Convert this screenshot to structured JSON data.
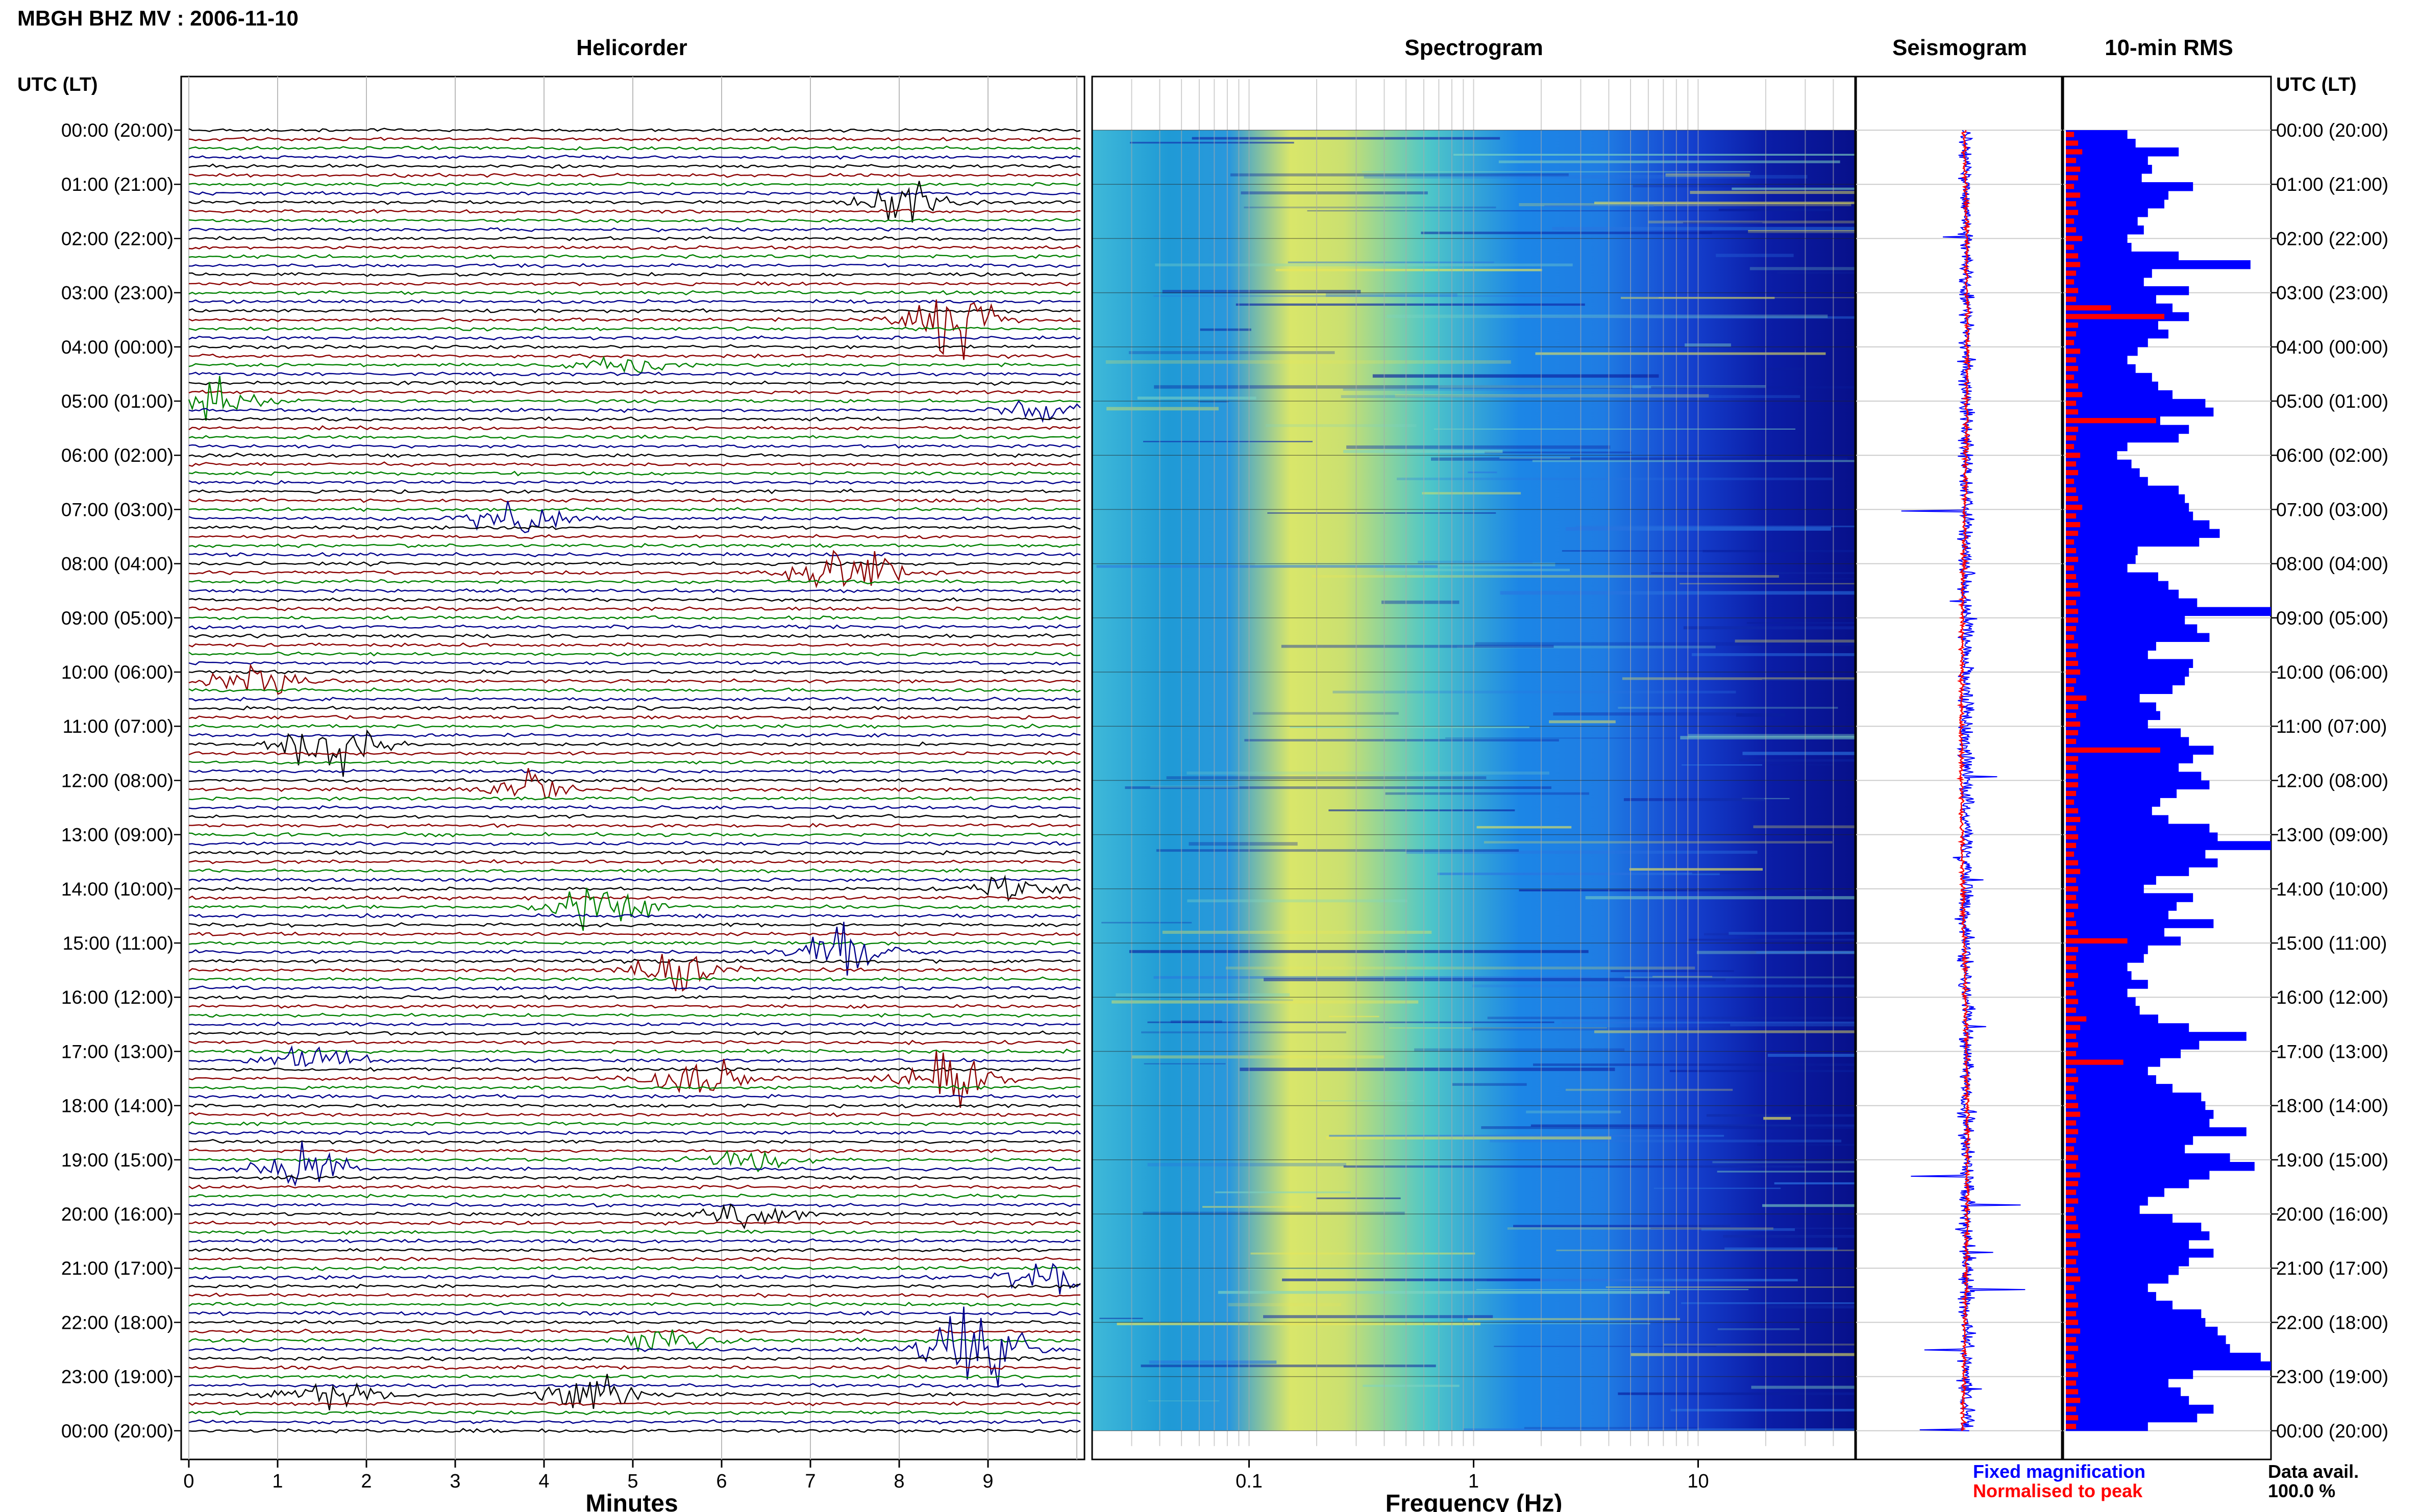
{
  "header": {
    "title": "MBGH BHZ MV : 2006-11-10",
    "helicorder_title": "Helicorder",
    "spectrogram_title": "Spectrogram",
    "seismogram_title": "Seismogram",
    "rms_title": "10-min RMS",
    "left_axis_title": "UTC (LT)",
    "right_axis_title": "UTC (LT)"
  },
  "footer": {
    "minutes_label": "Minutes",
    "frequency_label": "Frequency (Hz)",
    "legend_fixed": "Fixed magnification",
    "legend_normalised": "Normalised to peak",
    "data_avail_label": "Data avail.",
    "data_avail_value": "100.0 %"
  },
  "colors": {
    "trace_cycle": [
      "#000000",
      "#8b0000",
      "#008000",
      "#00008b"
    ],
    "fixed": "#0000ff",
    "normalised": "#ff0000"
  },
  "chart_data": [
    {
      "type": "line",
      "name": "helicorder",
      "title": "Helicorder",
      "xlabel": "Minutes",
      "xlim": [
        0,
        10
      ],
      "x_ticks": [
        "0",
        "1",
        "2",
        "3",
        "4",
        "5",
        "6",
        "7",
        "8",
        "9"
      ],
      "hour_labels": [
        "00:00 (20:00)",
        "01:00 (21:00)",
        "02:00 (22:00)",
        "03:00 (23:00)",
        "04:00 (00:00)",
        "05:00 (01:00)",
        "06:00 (02:00)",
        "07:00 (03:00)",
        "08:00 (04:00)",
        "09:00 (05:00)",
        "10:00 (06:00)",
        "11:00 (07:00)",
        "12:00 (08:00)",
        "13:00 (09:00)",
        "14:00 (10:00)",
        "15:00 (11:00)",
        "16:00 (12:00)",
        "17:00 (13:00)",
        "18:00 (14:00)",
        "19:00 (15:00)",
        "20:00 (16:00)",
        "21:00 (17:00)",
        "22:00 (18:00)",
        "23:00 (19:00)",
        "00:00 (20:00)"
      ],
      "traces_per_hour": 6,
      "events": [
        [
          1,
          8.0,
          1.6
        ],
        [
          3,
          8.6,
          2.6
        ],
        [
          4,
          4.9,
          0.6
        ],
        [
          5,
          0.2,
          1.6
        ],
        [
          5,
          9.6,
          0.8
        ],
        [
          7,
          3.7,
          1.4
        ],
        [
          8,
          7.4,
          2.8
        ],
        [
          10,
          0.7,
          1.2
        ],
        [
          11,
          1.6,
          2.2
        ],
        [
          12,
          3.8,
          1.0
        ],
        [
          14,
          4.7,
          2.2
        ],
        [
          14,
          9.3,
          1.0
        ],
        [
          15,
          5.5,
          1.4
        ],
        [
          15,
          7.3,
          1.6
        ],
        [
          17,
          1.4,
          1.2
        ],
        [
          17,
          5.7,
          1.6
        ],
        [
          17,
          8.5,
          2.2
        ],
        [
          19,
          1.3,
          1.6
        ],
        [
          19,
          6.3,
          1.0
        ],
        [
          20,
          6.3,
          1.4
        ],
        [
          21,
          9.6,
          1.4
        ],
        [
          22,
          5.4,
          1.2
        ],
        [
          22,
          8.8,
          3.2
        ],
        [
          23,
          4.5,
          1.6
        ],
        [
          23,
          1.6,
          1.0
        ]
      ]
    },
    {
      "type": "heatmap",
      "name": "spectrogram",
      "title": "Spectrogram",
      "xlabel": "Frequency (Hz)",
      "x_scale": "log",
      "xlim": [
        0.02,
        50
      ],
      "x_ticks": [
        0.1,
        1,
        10
      ],
      "x_tick_labels": [
        "0.1",
        "1",
        "10"
      ]
    },
    {
      "type": "line",
      "name": "seismogram",
      "title": "Seismogram",
      "series": [
        {
          "name": "Fixed magnification",
          "color": "#0000ff"
        },
        {
          "name": "Normalised to peak",
          "color": "#ff0000"
        }
      ]
    },
    {
      "type": "bar",
      "name": "10-min RMS",
      "title": "10-min RMS",
      "series": [
        {
          "name": "Fixed magnification",
          "color": "#0000ff",
          "values": [
            0.3,
            0.34,
            0.55,
            0.4,
            0.42,
            0.37,
            0.62,
            0.5,
            0.48,
            0.4,
            0.35,
            0.38,
            0.3,
            0.32,
            0.55,
            0.9,
            0.42,
            0.38,
            0.6,
            0.44,
            0.52,
            0.6,
            0.45,
            0.5,
            0.4,
            0.35,
            0.3,
            0.34,
            0.42,
            0.45,
            0.52,
            0.68,
            0.72,
            0.46,
            0.6,
            0.55,
            0.3,
            0.25,
            0.32,
            0.36,
            0.4,
            0.55,
            0.58,
            0.6,
            0.62,
            0.7,
            0.75,
            0.65,
            0.35,
            0.34,
            0.3,
            0.45,
            0.5,
            0.55,
            0.64,
            1.0,
            0.58,
            0.64,
            0.7,
            0.44,
            0.4,
            0.62,
            0.6,
            0.58,
            0.52,
            0.36,
            0.44,
            0.46,
            0.4,
            0.56,
            0.6,
            0.72,
            0.62,
            0.55,
            0.66,
            0.7,
            0.54,
            0.46,
            0.42,
            0.5,
            0.7,
            0.74,
            1.0,
            0.68,
            0.74,
            0.6,
            0.44,
            0.38,
            0.62,
            0.54,
            0.5,
            0.72,
            0.48,
            0.56,
            0.4,
            0.38,
            0.3,
            0.32,
            0.4,
            0.3,
            0.34,
            0.36,
            0.45,
            0.6,
            0.88,
            0.65,
            0.56,
            0.46,
            0.4,
            0.44,
            0.52,
            0.66,
            0.68,
            0.72,
            0.7,
            0.88,
            0.62,
            0.58,
            0.8,
            0.92,
            0.7,
            0.6,
            0.48,
            0.4,
            0.36,
            0.52,
            0.66,
            0.7,
            0.6,
            0.72,
            0.6,
            0.55,
            0.5,
            0.4,
            0.44,
            0.52,
            0.66,
            0.68,
            0.74,
            0.78,
            0.8,
            0.95,
            1.0,
            0.62,
            0.5,
            0.56,
            0.6,
            0.72,
            0.64,
            0.4
          ]
        },
        {
          "name": "Normalised to peak",
          "color": "#ff0000",
          "values": [
            0.04,
            0.06,
            0.08,
            0.05,
            0.07,
            0.06,
            0.04,
            0.07,
            0.05,
            0.06,
            0.04,
            0.05,
            0.08,
            0.04,
            0.06,
            0.07,
            0.05,
            0.04,
            0.06,
            0.05,
            0.22,
            0.48,
            0.06,
            0.05,
            0.04,
            0.07,
            0.05,
            0.06,
            0.04,
            0.06,
            0.08,
            0.05,
            0.06,
            0.44,
            0.06,
            0.05,
            0.04,
            0.07,
            0.05,
            0.06,
            0.04,
            0.05,
            0.06,
            0.08,
            0.05,
            0.07,
            0.06,
            0.04,
            0.05,
            0.06,
            0.04,
            0.05,
            0.06,
            0.07,
            0.05,
            0.06,
            0.06,
            0.05,
            0.04,
            0.06,
            0.05,
            0.06,
            0.07,
            0.05,
            0.04,
            0.1,
            0.06,
            0.05,
            0.07,
            0.06,
            0.05,
            0.46,
            0.06,
            0.05,
            0.06,
            0.06,
            0.05,
            0.04,
            0.06,
            0.07,
            0.05,
            0.06,
            0.05,
            0.04,
            0.06,
            0.07,
            0.05,
            0.06,
            0.05,
            0.06,
            0.04,
            0.05,
            0.06,
            0.3,
            0.06,
            0.05,
            0.05,
            0.06,
            0.04,
            0.05,
            0.06,
            0.05,
            0.1,
            0.07,
            0.05,
            0.06,
            0.05,
            0.28,
            0.05,
            0.06,
            0.04,
            0.05,
            0.06,
            0.07,
            0.05,
            0.06,
            0.05,
            0.04,
            0.06,
            0.05,
            0.07,
            0.06,
            0.05,
            0.06,
            0.04,
            0.05,
            0.06,
            0.07,
            0.05,
            0.06,
            0.05,
            0.06,
            0.07,
            0.04,
            0.05,
            0.06,
            0.05,
            0.06,
            0.07,
            0.05,
            0.06,
            0.04,
            0.05,
            0.06,
            0.05,
            0.06,
            0.07,
            0.05,
            0.06,
            0.05
          ]
        }
      ]
    }
  ]
}
